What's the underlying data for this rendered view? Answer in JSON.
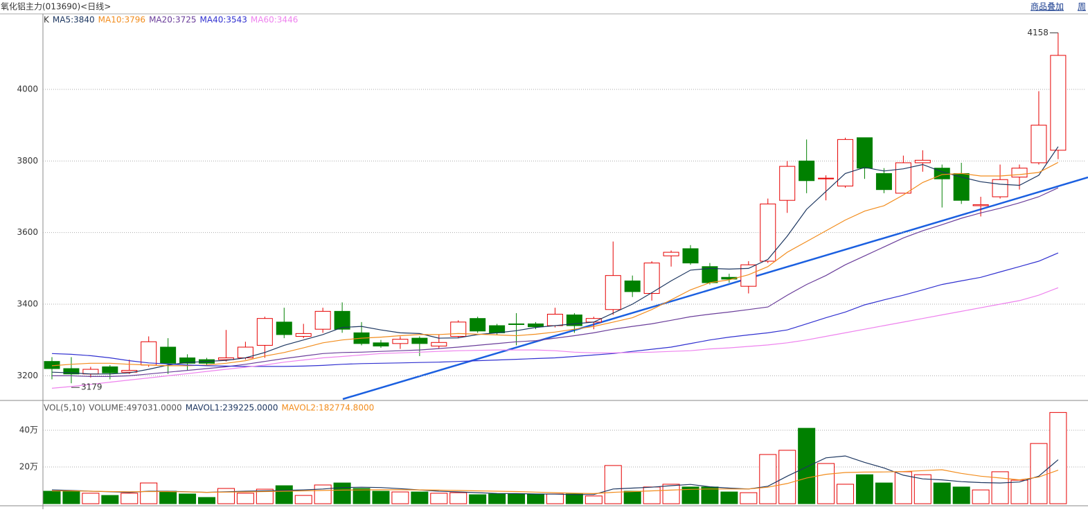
{
  "toolbar": [
    "商品叠加",
    "周"
  ],
  "chart_data": [
    {
      "type": "candlestick",
      "title": "氧化铝主力(013690)<日线>",
      "label": "K",
      "candles": {
        "open": [
          3240,
          3220,
          3205,
          3225,
          3210,
          3230,
          3280,
          3250,
          3245,
          3245,
          3250,
          3285,
          3350,
          3310,
          3330,
          3380,
          3320,
          3292,
          3290,
          3305,
          3283,
          3310,
          3360,
          3340,
          3345,
          3345,
          3340,
          3370,
          3350,
          3385,
          3465,
          3430,
          3535,
          3555,
          3505,
          3475,
          3450,
          3520,
          3690,
          3800,
          3750,
          3730,
          3865,
          3765,
          3710,
          3795,
          3780,
          3765,
          3675,
          3700,
          3755,
          3795,
          3830
        ],
        "high": [
          3252,
          3252,
          3225,
          3230,
          3245,
          3310,
          3305,
          3260,
          3250,
          3328,
          3295,
          3365,
          3390,
          3345,
          3390,
          3405,
          3350,
          3300,
          3310,
          3310,
          3315,
          3355,
          3365,
          3345,
          3375,
          3350,
          3390,
          3375,
          3365,
          3575,
          3480,
          3520,
          3550,
          3565,
          3515,
          3485,
          3520,
          3695,
          3800,
          3860,
          3760,
          3865,
          3865,
          3780,
          3815,
          3830,
          3790,
          3795,
          3700,
          3790,
          3790,
          3995,
          4158
        ],
        "low": [
          3190,
          3179,
          3195,
          3190,
          3205,
          3225,
          3205,
          3215,
          3230,
          3240,
          3245,
          3250,
          3305,
          3305,
          3320,
          3320,
          3285,
          3278,
          3275,
          3255,
          3275,
          3305,
          3320,
          3315,
          3285,
          3330,
          3335,
          3320,
          3330,
          3370,
          3420,
          3410,
          3505,
          3510,
          3455,
          3460,
          3430,
          3515,
          3655,
          3710,
          3690,
          3725,
          3750,
          3710,
          3710,
          3770,
          3670,
          3680,
          3645,
          3695,
          3720,
          3790,
          3805
        ],
        "close": [
          3220,
          3205,
          3218,
          3208,
          3215,
          3295,
          3235,
          3235,
          3235,
          3250,
          3280,
          3360,
          3315,
          3318,
          3380,
          3330,
          3290,
          3283,
          3302,
          3290,
          3293,
          3350,
          3325,
          3320,
          3343,
          3337,
          3372,
          3340,
          3360,
          3480,
          3435,
          3515,
          3545,
          3515,
          3460,
          3470,
          3510,
          3680,
          3785,
          3745,
          3752,
          3860,
          3780,
          3720,
          3795,
          3802,
          3750,
          3690,
          3678,
          3748,
          3780,
          3900,
          4095
        ]
      },
      "up_color": "#e60000",
      "down_color": "#008000",
      "series": [
        {
          "name": "MA5:3840",
          "color": "#1c3660",
          "values": [
            3210,
            3208,
            3205,
            3205,
            3208,
            3218,
            3230,
            3237,
            3240,
            3243,
            3250,
            3265,
            3285,
            3300,
            3315,
            3335,
            3338,
            3328,
            3320,
            3318,
            3305,
            3306,
            3315,
            3320,
            3326,
            3335,
            3340,
            3345,
            3350,
            3375,
            3400,
            3432,
            3465,
            3495,
            3500,
            3498,
            3500,
            3525,
            3590,
            3665,
            3715,
            3765,
            3782,
            3772,
            3778,
            3790,
            3770,
            3755,
            3742,
            3735,
            3732,
            3760,
            3840
          ]
        },
        {
          "name": "MA10:3796",
          "color": "#f28c1c",
          "values": [
            3228,
            3232,
            3235,
            3235,
            3232,
            3230,
            3228,
            3228,
            3230,
            3235,
            3242,
            3255,
            3265,
            3278,
            3292,
            3300,
            3305,
            3308,
            3312,
            3315,
            3315,
            3318,
            3316,
            3314,
            3312,
            3316,
            3322,
            3330,
            3338,
            3350,
            3362,
            3385,
            3412,
            3440,
            3460,
            3468,
            3482,
            3505,
            3545,
            3575,
            3605,
            3635,
            3660,
            3675,
            3705,
            3740,
            3762,
            3765,
            3758,
            3758,
            3762,
            3768,
            3796
          ]
        },
        {
          "name": "MA20:3725",
          "color": "#6a3d9a",
          "values": [
            3200,
            3200,
            3198,
            3198,
            3200,
            3205,
            3210,
            3215,
            3220,
            3225,
            3232,
            3240,
            3248,
            3255,
            3262,
            3265,
            3266,
            3268,
            3270,
            3272,
            3276,
            3280,
            3285,
            3290,
            3295,
            3298,
            3305,
            3312,
            3320,
            3330,
            3338,
            3345,
            3355,
            3365,
            3372,
            3378,
            3385,
            3392,
            3425,
            3455,
            3480,
            3510,
            3535,
            3560,
            3585,
            3605,
            3622,
            3640,
            3655,
            3668,
            3683,
            3700,
            3725
          ]
        },
        {
          "name": "MA40:3543",
          "color": "#3030d0",
          "values": [
            3262,
            3260,
            3256,
            3250,
            3242,
            3236,
            3233,
            3230,
            3228,
            3227,
            3226,
            3226,
            3226,
            3227,
            3229,
            3232,
            3234,
            3235,
            3236,
            3237,
            3238,
            3240,
            3242,
            3244,
            3246,
            3248,
            3250,
            3254,
            3258,
            3262,
            3268,
            3274,
            3280,
            3290,
            3300,
            3308,
            3314,
            3320,
            3328,
            3345,
            3362,
            3378,
            3398,
            3412,
            3425,
            3440,
            3455,
            3465,
            3475,
            3490,
            3505,
            3520,
            3543
          ]
        },
        {
          "name": "MA60:3446",
          "color": "#ee82ee",
          "values": [
            3165,
            3170,
            3176,
            3182,
            3188,
            3194,
            3200,
            3206,
            3212,
            3218,
            3224,
            3230,
            3238,
            3244,
            3250,
            3254,
            3258,
            3262,
            3264,
            3266,
            3268,
            3270,
            3271,
            3272,
            3272,
            3272,
            3270,
            3266,
            3264,
            3264,
            3265,
            3266,
            3268,
            3270,
            3275,
            3278,
            3282,
            3286,
            3292,
            3300,
            3310,
            3320,
            3330,
            3340,
            3350,
            3360,
            3370,
            3380,
            3390,
            3400,
            3410,
            3425,
            3446
          ]
        }
      ],
      "ylim": [
        3131,
        4211
      ],
      "yticks": [
        3200,
        3400,
        3600,
        3800,
        4000
      ],
      "grid": true
    },
    {
      "type": "bar",
      "label": "VOL(5,10)",
      "series": [
        {
          "name": "VOLUME:497031.0000",
          "color": "#555555",
          "values": [
            68000,
            68000,
            57000,
            45000,
            57000,
            113000,
            68000,
            53000,
            34000,
            83000,
            57000,
            79000,
            98000,
            45000,
            102000,
            113000,
            83000,
            68000,
            64000,
            64000,
            57000,
            60000,
            49000,
            53000,
            53000,
            53000,
            53000,
            53000,
            42000,
            208000,
            68000,
            91000,
            106000,
            91000,
            91000,
            64000,
            60000,
            268000,
            291000,
            411000,
            219000,
            106000,
            158000,
            113000,
            174000,
            158000,
            113000,
            91000,
            75000,
            174000,
            128000,
            328000,
            497031
          ]
        },
        {
          "name": "MAVOL1:239225.0000",
          "color": "#1c3660",
          "values": [
            75000,
            72000,
            68000,
            65000,
            62000,
            68000,
            68000,
            65000,
            62000,
            65000,
            68000,
            70000,
            72000,
            75000,
            80000,
            88000,
            90000,
            88000,
            82000,
            75000,
            68000,
            64000,
            60000,
            56000,
            55000,
            53000,
            52000,
            50000,
            50000,
            80000,
            85000,
            90000,
            98000,
            105000,
            92000,
            85000,
            80000,
            95000,
            150000,
            200000,
            250000,
            260000,
            225000,
            195000,
            155000,
            135000,
            130000,
            120000,
            115000,
            113000,
            118000,
            150000,
            239225
          ]
        },
        {
          "name": "MAVOL2:182774.8000",
          "color": "#f28c1c",
          "values": [
            70000,
            70000,
            68000,
            66000,
            65000,
            66000,
            66000,
            64000,
            62000,
            63000,
            64000,
            66000,
            68000,
            70000,
            72000,
            74000,
            75000,
            76000,
            76000,
            75000,
            74000,
            72000,
            70000,
            68000,
            66000,
            63000,
            60000,
            57000,
            55000,
            62000,
            66000,
            70000,
            74000,
            78000,
            80000,
            80000,
            80000,
            90000,
            110000,
            140000,
            160000,
            170000,
            172000,
            173000,
            175000,
            180000,
            185000,
            165000,
            150000,
            140000,
            130000,
            145000,
            182774.8
          ]
        }
      ],
      "ylim": [
        0,
        555000
      ],
      "yticks": [
        {
          "value": 200000,
          "label": "20万"
        },
        {
          "value": 400000,
          "label": "40万"
        }
      ],
      "grid": true
    }
  ]
}
